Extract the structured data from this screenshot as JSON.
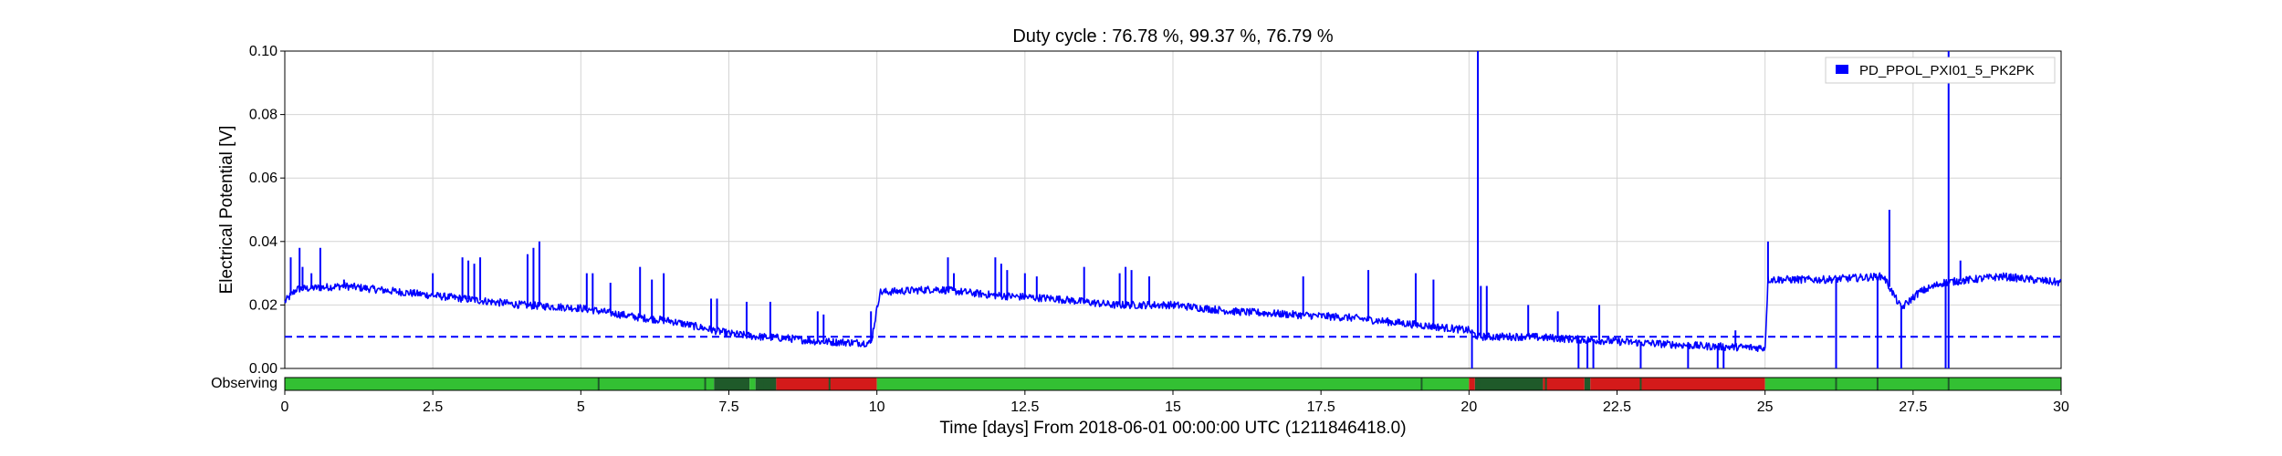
{
  "chart_data": {
    "type": "line",
    "title": "Duty cycle : 76.78 %, 99.37 %, 76.79 %",
    "xlabel": "Time [days] From 2018-06-01 00:00:00 UTC (1211846418.0)",
    "ylabel": "Electrical Potential [V]",
    "xlim": [
      0,
      30
    ],
    "ylim": [
      0,
      0.1
    ],
    "x_ticks": [
      0,
      2.5,
      5,
      7.5,
      10,
      12.5,
      15,
      17.5,
      20,
      22.5,
      25,
      27.5,
      30
    ],
    "x_tick_labels": [
      "0",
      "2.5",
      "5",
      "7.5",
      "10",
      "12.5",
      "15",
      "17.5",
      "20",
      "22.5",
      "25",
      "27.5",
      "30"
    ],
    "y_ticks": [
      0,
      0.02,
      0.04,
      0.06,
      0.08,
      0.1
    ],
    "y_tick_labels": [
      "0.00",
      "0.02",
      "0.04",
      "0.06",
      "0.08",
      "0.10"
    ],
    "grid": true,
    "legend_position": "top-right",
    "series": [
      {
        "name": "PD_PPOL_PXI01_5_PK2PK",
        "color": "#0000ff",
        "baseline_x": [
          0,
          0.2,
          1,
          2,
          2.5,
          3,
          4,
          5,
          6,
          6.5,
          7,
          7.5,
          8,
          8.5,
          9,
          9.9,
          10.05,
          11,
          12,
          13,
          14,
          15,
          16,
          17,
          18,
          19,
          20,
          20.15,
          21,
          22,
          23,
          24,
          25,
          25.05,
          26,
          27,
          27.3,
          27.6,
          28,
          29,
          30
        ],
        "baseline_y": [
          0.021,
          0.025,
          0.026,
          0.024,
          0.023,
          0.022,
          0.02,
          0.019,
          0.016,
          0.015,
          0.013,
          0.011,
          0.01,
          0.0095,
          0.0085,
          0.008,
          0.024,
          0.025,
          0.023,
          0.022,
          0.02,
          0.02,
          0.018,
          0.017,
          0.016,
          0.014,
          0.012,
          0.01,
          0.01,
          0.009,
          0.008,
          0.007,
          0.0065,
          0.028,
          0.028,
          0.029,
          0.019,
          0.024,
          0.027,
          0.029,
          0.027
        ],
        "noise_amplitude": 0.0012,
        "spikes_x": [
          0.1,
          0.25,
          0.3,
          0.45,
          0.6,
          1.0,
          2.5,
          3.0,
          3.1,
          3.2,
          3.3,
          4.1,
          4.2,
          4.3,
          5.1,
          5.2,
          5.5,
          6.0,
          6.2,
          6.4,
          7.2,
          7.3,
          7.8,
          8.2,
          9.0,
          9.1,
          9.9,
          11.2,
          11.3,
          12.0,
          12.1,
          12.2,
          12.5,
          12.7,
          13.5,
          14.1,
          14.2,
          14.3,
          14.6,
          17.2,
          18.3,
          19.1,
          19.4,
          20.15,
          20.2,
          20.3,
          21.0,
          21.5,
          22.2,
          24.5,
          25.05,
          27.1,
          28.1,
          28.3
        ],
        "spikes_y": [
          0.035,
          0.038,
          0.032,
          0.03,
          0.038,
          0.028,
          0.03,
          0.035,
          0.034,
          0.033,
          0.035,
          0.036,
          0.038,
          0.04,
          0.03,
          0.03,
          0.027,
          0.032,
          0.028,
          0.03,
          0.022,
          0.022,
          0.021,
          0.021,
          0.018,
          0.017,
          0.018,
          0.035,
          0.03,
          0.035,
          0.033,
          0.031,
          0.03,
          0.029,
          0.032,
          0.03,
          0.032,
          0.031,
          0.029,
          0.029,
          0.031,
          0.03,
          0.028,
          0.1,
          0.026,
          0.026,
          0.02,
          0.018,
          0.02,
          0.012,
          0.04,
          0.05,
          0.1,
          0.034
        ],
        "dips_x": [
          20.05,
          21.85,
          22.0,
          22.1,
          22.9,
          23.7,
          24.2,
          24.3,
          26.2,
          26.9,
          27.3,
          28.05,
          28.1
        ],
        "dips_y": [
          0.0,
          0.0,
          0.0,
          0.0,
          0.0,
          0.0,
          0.0,
          0.0,
          0.0,
          0.0,
          0.0,
          0.0,
          0.0
        ]
      },
      {
        "color": "#0000ff",
        "style": "dashed",
        "x": [
          0,
          30
        ],
        "y": [
          0.01,
          0.01
        ]
      }
    ]
  },
  "state_bar": {
    "label": "Observing",
    "segments": [
      {
        "start": 0,
        "end": 7.25,
        "color": "#33c033"
      },
      {
        "start": 7.25,
        "end": 7.85,
        "color": "#1f5a2a"
      },
      {
        "start": 7.85,
        "end": 7.95,
        "color": "#33c033"
      },
      {
        "start": 7.95,
        "end": 8.3,
        "color": "#1f5a2a"
      },
      {
        "start": 8.3,
        "end": 10.0,
        "color": "#d41a1a"
      },
      {
        "start": 10.0,
        "end": 20.0,
        "color": "#33c033"
      },
      {
        "start": 20.0,
        "end": 20.1,
        "color": "#d41a1a"
      },
      {
        "start": 20.1,
        "end": 21.25,
        "color": "#1f5a2a"
      },
      {
        "start": 21.25,
        "end": 21.95,
        "color": "#d41a1a"
      },
      {
        "start": 21.95,
        "end": 22.05,
        "color": "#1f5a2a"
      },
      {
        "start": 22.05,
        "end": 25.0,
        "color": "#d41a1a"
      },
      {
        "start": 25.0,
        "end": 30.0,
        "color": "#33c033"
      }
    ],
    "markers_x": [
      5.3,
      7.1,
      8.1,
      9.2,
      19.2,
      20.2,
      21.3,
      22.9,
      26.2,
      26.9,
      28.1
    ],
    "marker_color": "#1f5a2a"
  }
}
